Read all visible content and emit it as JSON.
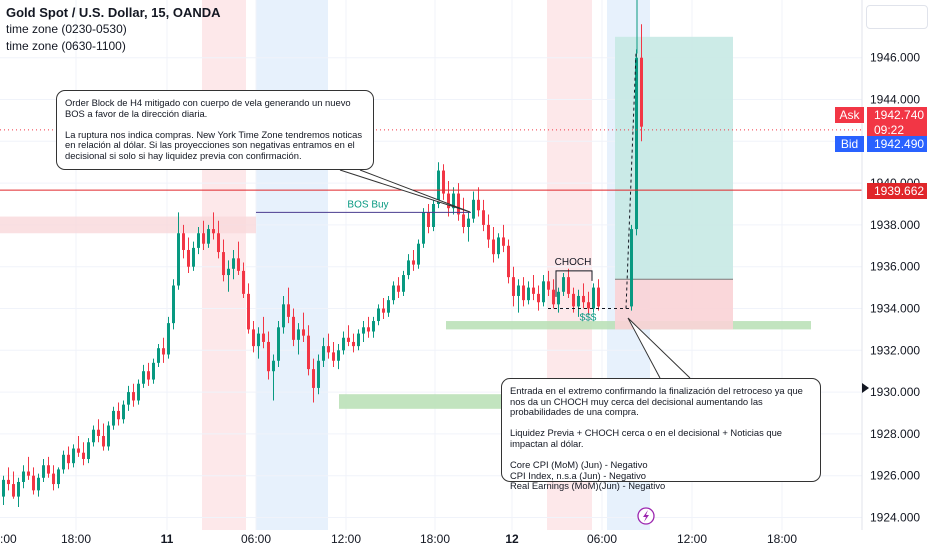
{
  "legend": {
    "title": "Gold Spot / U.S. Dollar, 15, OANDA",
    "line1": "time zone (0230-0530)",
    "line2": "time zone (0630-1100)"
  },
  "badges": {
    "ask_label": "Ask",
    "ask_price": "1942.740",
    "countdown": "09:22",
    "bid_label": "Bid",
    "bid_price": "1942.490",
    "line_price": "1939.662"
  },
  "annotations": {
    "callout_top": "Order Block de H4 mitigado con cuerpo de vela generando un nuevo BOS a favor de la dirección diaria.\n\nLa ruptura nos indica compras. New York Time Zone tendremos noticas en relación al dólar. Si las proyecciones son negativas entramos en el decisional si solo si hay liquidez previa con confirmación.",
    "callout_bottom": "Entrada en el extremo confirmando la finalización del retroceso ya que nos da un CHOCH muy cerca del decisional aumentando las probabilidades de una compra.\n\nLiquidez Previa + CHOCH cerca o en el decisional + Noticias que impactan al dólar.\n\nCore CPI (MoM) (Jun) - Negativo\nCPI Index, n.s.a (Jun) - Negativo\nReal Earnings (MoM)(Jun) - Negativo",
    "bos": "BOS Buy",
    "choch": "CHOCH",
    "liquidity": "$$$"
  },
  "colors": {
    "up": "#089981",
    "down": "#f23645",
    "session_red": "#fde4e6",
    "session_blue": "#e3eefc",
    "zone_green": "#b7dfb4",
    "zone_red": "#f9d8db",
    "target_green": "#c7e9e4",
    "stop_red": "#f9d3d6",
    "hline": "#e0262a"
  },
  "chart_data": {
    "type": "candlestick",
    "symbol": "Gold Spot / U.S. Dollar",
    "interval": "15",
    "broker": "OANDA",
    "y_ticks": [
      1924,
      1926,
      1928,
      1930,
      1932,
      1934,
      1936,
      1938,
      1940,
      1942,
      1944,
      1946
    ],
    "y_tick_labels": [
      "1924.000",
      "1926.000",
      "1928.000",
      "1930.000",
      "1932.000",
      "1934.000",
      "1936.000",
      "1938.000",
      "1940.000",
      "1942.000",
      "1944.000",
      "1946.000"
    ],
    "ylim": [
      1923.6,
      1948.3
    ],
    "x_tick_labels": [
      "18:00",
      "11",
      "06:00",
      "12:00",
      "18:00",
      "12",
      "06:00",
      "12:00",
      "18:00"
    ],
    "edge_label": ":00",
    "bold_x_labels": [
      "11",
      "12"
    ],
    "sessions": [
      {
        "zone": "0230-0530",
        "day": "11"
      },
      {
        "zone": "0630-1100",
        "day": "11"
      },
      {
        "zone": "0230-0530",
        "day": "12"
      },
      {
        "zone": "0630-1100",
        "day": "12"
      }
    ],
    "horizontal_line": 1939.662,
    "ask": 1942.74,
    "bid": 1942.49,
    "bos_level": 1938.6,
    "decisional_zone": [
      1933.0,
      1933.4
    ],
    "demand_zone": [
      1929.2,
      1929.9
    ],
    "order_block_zone": [
      1937.6,
      1938.4
    ],
    "position": {
      "side": "long",
      "entry": 1935.4,
      "stop": 1933.0,
      "target": 1947.0
    },
    "candles": [
      [
        1925.0,
        1926.0,
        1924.6,
        1925.8
      ],
      [
        1925.8,
        1926.4,
        1925.3,
        1925.6
      ],
      [
        1925.6,
        1926.2,
        1924.9,
        1925.0
      ],
      [
        1925.0,
        1925.9,
        1924.5,
        1925.7
      ],
      [
        1925.7,
        1926.5,
        1925.4,
        1926.2
      ],
      [
        1926.2,
        1926.9,
        1925.8,
        1926.0
      ],
      [
        1926.0,
        1926.4,
        1925.1,
        1925.3
      ],
      [
        1925.3,
        1926.1,
        1925.0,
        1925.9
      ],
      [
        1925.9,
        1926.8,
        1925.7,
        1926.5
      ],
      [
        1926.5,
        1926.9,
        1925.9,
        1926.1
      ],
      [
        1926.1,
        1926.5,
        1925.3,
        1925.6
      ],
      [
        1925.6,
        1926.4,
        1925.4,
        1926.3
      ],
      [
        1926.3,
        1927.2,
        1926.1,
        1927.0
      ],
      [
        1927.0,
        1927.4,
        1926.3,
        1926.6
      ],
      [
        1926.6,
        1927.5,
        1926.4,
        1927.3
      ],
      [
        1927.3,
        1927.9,
        1926.9,
        1927.1
      ],
      [
        1927.1,
        1927.6,
        1926.5,
        1926.8
      ],
      [
        1926.8,
        1927.8,
        1926.6,
        1927.6
      ],
      [
        1927.6,
        1928.4,
        1927.4,
        1928.2
      ],
      [
        1928.2,
        1928.7,
        1927.6,
        1927.9
      ],
      [
        1927.9,
        1928.5,
        1927.2,
        1927.4
      ],
      [
        1927.4,
        1928.6,
        1927.2,
        1928.4
      ],
      [
        1928.4,
        1929.3,
        1928.2,
        1929.1
      ],
      [
        1929.1,
        1929.5,
        1928.4,
        1928.7
      ],
      [
        1928.7,
        1929.6,
        1928.5,
        1929.4
      ],
      [
        1929.4,
        1930.3,
        1929.1,
        1930.0
      ],
      [
        1930.0,
        1930.4,
        1929.3,
        1929.6
      ],
      [
        1929.6,
        1930.6,
        1929.4,
        1930.4
      ],
      [
        1930.4,
        1931.3,
        1930.2,
        1931.0
      ],
      [
        1931.0,
        1931.4,
        1930.3,
        1930.6
      ],
      [
        1930.6,
        1931.6,
        1930.4,
        1931.4
      ],
      [
        1931.4,
        1932.3,
        1931.2,
        1932.1
      ],
      [
        1932.1,
        1932.6,
        1931.4,
        1931.8
      ],
      [
        1931.8,
        1933.6,
        1931.6,
        1933.3
      ],
      [
        1933.3,
        1935.4,
        1933.0,
        1935.1
      ],
      [
        1935.1,
        1938.6,
        1934.9,
        1937.6
      ],
      [
        1937.6,
        1938.0,
        1936.4,
        1936.8
      ],
      [
        1936.8,
        1937.4,
        1935.7,
        1936.0
      ],
      [
        1936.0,
        1937.2,
        1935.8,
        1936.9
      ],
      [
        1936.9,
        1937.9,
        1936.6,
        1937.6
      ],
      [
        1937.6,
        1938.2,
        1936.8,
        1937.1
      ],
      [
        1937.1,
        1938.0,
        1936.9,
        1937.8
      ],
      [
        1937.8,
        1938.6,
        1937.3,
        1937.6
      ],
      [
        1937.6,
        1938.2,
        1936.4,
        1936.7
      ],
      [
        1936.7,
        1937.3,
        1935.3,
        1935.6
      ],
      [
        1935.6,
        1936.3,
        1934.8,
        1935.9
      ],
      [
        1935.9,
        1936.8,
        1935.4,
        1936.4
      ],
      [
        1936.4,
        1937.2,
        1935.6,
        1935.8
      ],
      [
        1935.8,
        1936.2,
        1934.5,
        1934.7
      ],
      [
        1934.7,
        1935.2,
        1932.8,
        1933.0
      ],
      [
        1933.0,
        1933.4,
        1931.9,
        1932.2
      ],
      [
        1932.2,
        1933.1,
        1931.6,
        1932.8
      ],
      [
        1932.8,
        1933.6,
        1932.1,
        1932.4
      ],
      [
        1932.4,
        1932.9,
        1930.6,
        1931.0
      ],
      [
        1931.0,
        1931.8,
        1929.6,
        1931.5
      ],
      [
        1931.5,
        1933.4,
        1931.2,
        1933.1
      ],
      [
        1933.1,
        1934.6,
        1932.8,
        1934.2
      ],
      [
        1934.2,
        1935.0,
        1933.3,
        1933.6
      ],
      [
        1933.6,
        1934.0,
        1932.2,
        1932.5
      ],
      [
        1932.5,
        1933.3,
        1931.8,
        1933.0
      ],
      [
        1933.0,
        1933.8,
        1932.4,
        1932.7
      ],
      [
        1932.7,
        1933.2,
        1930.8,
        1931.1
      ],
      [
        1931.1,
        1931.6,
        1929.5,
        1930.2
      ],
      [
        1930.2,
        1931.8,
        1929.9,
        1931.5
      ],
      [
        1931.5,
        1932.6,
        1931.2,
        1932.2
      ],
      [
        1932.2,
        1932.8,
        1931.6,
        1931.9
      ],
      [
        1931.9,
        1932.4,
        1931.2,
        1931.5
      ],
      [
        1931.5,
        1932.3,
        1931.1,
        1932.0
      ],
      [
        1932.0,
        1932.9,
        1931.8,
        1932.6
      ],
      [
        1932.6,
        1933.2,
        1932.2,
        1932.4
      ],
      [
        1932.4,
        1932.8,
        1931.9,
        1932.2
      ],
      [
        1932.2,
        1933.0,
        1932.0,
        1932.8
      ],
      [
        1932.8,
        1933.4,
        1932.4,
        1933.1
      ],
      [
        1933.1,
        1933.6,
        1932.6,
        1932.9
      ],
      [
        1932.9,
        1933.6,
        1932.6,
        1933.4
      ],
      [
        1933.4,
        1934.2,
        1933.2,
        1934.0
      ],
      [
        1934.0,
        1934.5,
        1933.5,
        1933.8
      ],
      [
        1933.8,
        1934.6,
        1933.6,
        1934.4
      ],
      [
        1934.4,
        1935.3,
        1934.2,
        1935.1
      ],
      [
        1935.1,
        1935.5,
        1934.5,
        1934.8
      ],
      [
        1934.8,
        1935.8,
        1934.6,
        1935.6
      ],
      [
        1935.6,
        1936.6,
        1935.4,
        1936.3
      ],
      [
        1936.3,
        1936.8,
        1935.8,
        1936.1
      ],
      [
        1936.1,
        1937.3,
        1935.9,
        1937.1
      ],
      [
        1937.1,
        1938.8,
        1936.9,
        1938.6
      ],
      [
        1938.6,
        1939.0,
        1937.6,
        1937.9
      ],
      [
        1937.9,
        1939.3,
        1937.7,
        1939.0
      ],
      [
        1939.0,
        1941.0,
        1938.8,
        1940.6
      ],
      [
        1940.6,
        1940.9,
        1939.2,
        1939.5
      ],
      [
        1939.5,
        1940.1,
        1938.4,
        1938.8
      ],
      [
        1938.8,
        1939.8,
        1938.5,
        1939.5
      ],
      [
        1939.5,
        1940.0,
        1938.2,
        1938.5
      ],
      [
        1938.5,
        1939.3,
        1937.6,
        1937.9
      ],
      [
        1937.9,
        1938.6,
        1937.2,
        1938.3
      ],
      [
        1938.3,
        1939.6,
        1938.1,
        1939.2
      ],
      [
        1939.2,
        1939.8,
        1938.4,
        1938.7
      ],
      [
        1938.7,
        1939.2,
        1937.7,
        1938.0
      ],
      [
        1938.0,
        1938.5,
        1936.9,
        1937.3
      ],
      [
        1937.3,
        1937.9,
        1936.2,
        1936.6
      ],
      [
        1936.6,
        1937.6,
        1936.4,
        1937.4
      ],
      [
        1937.4,
        1938.0,
        1936.7,
        1937.0
      ],
      [
        1937.0,
        1937.3,
        1935.2,
        1935.5
      ],
      [
        1935.5,
        1936.0,
        1934.1,
        1934.6
      ],
      [
        1934.6,
        1935.4,
        1933.8,
        1935.1
      ],
      [
        1935.1,
        1935.5,
        1934.1,
        1934.4
      ],
      [
        1934.4,
        1935.3,
        1934.2,
        1935.0
      ],
      [
        1935.0,
        1935.6,
        1934.4,
        1934.7
      ],
      [
        1934.7,
        1935.1,
        1933.9,
        1934.3
      ],
      [
        1934.3,
        1935.6,
        1934.1,
        1935.3
      ],
      [
        1935.3,
        1935.8,
        1934.6,
        1934.9
      ],
      [
        1934.9,
        1935.4,
        1934.0,
        1934.2
      ],
      [
        1934.2,
        1935.0,
        1933.8,
        1934.8
      ],
      [
        1934.8,
        1935.7,
        1934.6,
        1935.5
      ],
      [
        1935.5,
        1935.9,
        1934.5,
        1934.7
      ],
      [
        1934.7,
        1935.0,
        1933.8,
        1934.1
      ],
      [
        1934.1,
        1934.9,
        1933.6,
        1934.6
      ],
      [
        1934.6,
        1935.2,
        1934.0,
        1934.3
      ],
      [
        1934.3,
        1934.8,
        1933.7,
        1934.0
      ],
      [
        1934.0,
        1935.2,
        1933.8,
        1935.0
      ],
      [
        1935.0,
        1935.4,
        1933.9,
        1934.1
      ],
      [
        1934.1,
        1938.0,
        1933.9,
        1937.8
      ],
      [
        1937.8,
        1946.4,
        1937.5,
        1946.0
      ],
      [
        1946.0,
        1947.6,
        1942.0,
        1942.7
      ]
    ]
  }
}
